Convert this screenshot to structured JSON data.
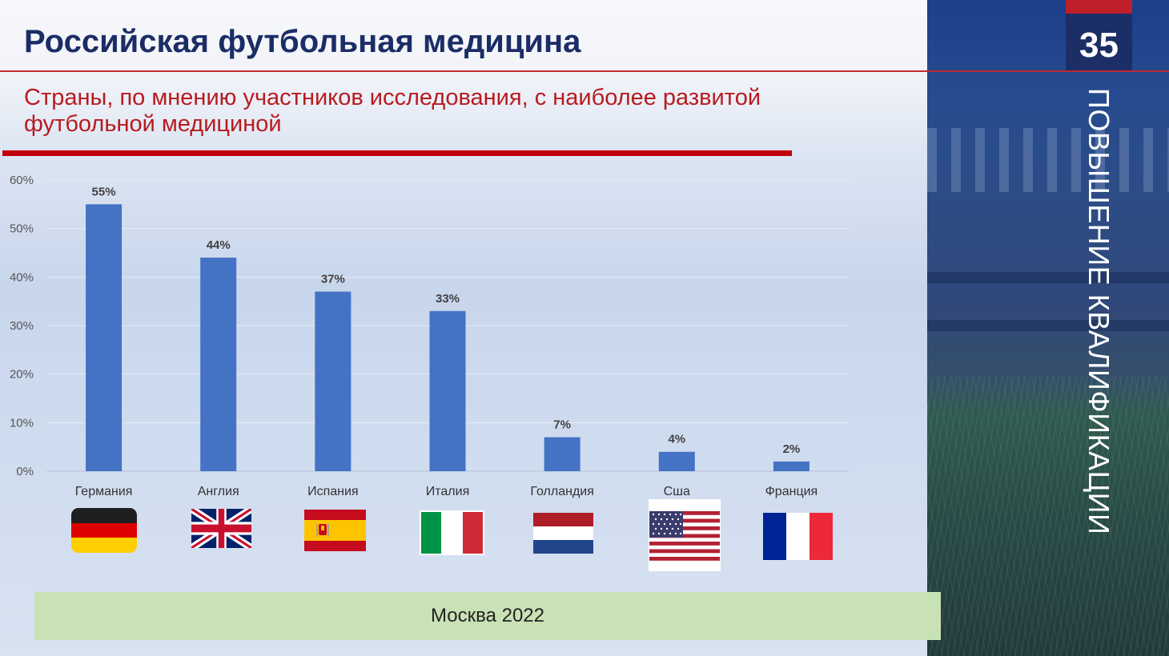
{
  "header": {
    "title": "Российская футбольная медицина"
  },
  "subtitle": "Страны, по мнению участников исследования,  с наиболее развитой футбольной медициной",
  "side_panel": {
    "page_number": "35",
    "vertical_title": "ПОВЫШЕНИЕ КВАЛИФИКАЦИИ"
  },
  "footer": {
    "text": "Москва 2022"
  },
  "colors": {
    "bar": "#4472c4",
    "title": "#1b2d66",
    "subtitle": "#b81b1f",
    "accent_red": "#c0000b"
  },
  "chart_data": {
    "type": "bar",
    "categories": [
      "Германия",
      "Англия",
      "Испания",
      "Италия",
      "Голландия",
      "Сша",
      "Франция"
    ],
    "values": [
      55,
      44,
      37,
      33,
      7,
      4,
      2
    ],
    "value_labels": [
      "55%",
      "44%",
      "37%",
      "33%",
      "7%",
      "4%",
      "2%"
    ],
    "y_ticks": [
      "0%",
      "10%",
      "20%",
      "30%",
      "40%",
      "50%",
      "60%"
    ],
    "ylim": [
      0,
      60
    ],
    "unit": "%",
    "grid": true,
    "legend": false,
    "flags": [
      "germany-flag-icon",
      "uk-flag-icon",
      "spain-flag-icon",
      "italy-flag-icon",
      "netherlands-flag-icon",
      "usa-flag-icon",
      "france-flag-icon"
    ]
  }
}
